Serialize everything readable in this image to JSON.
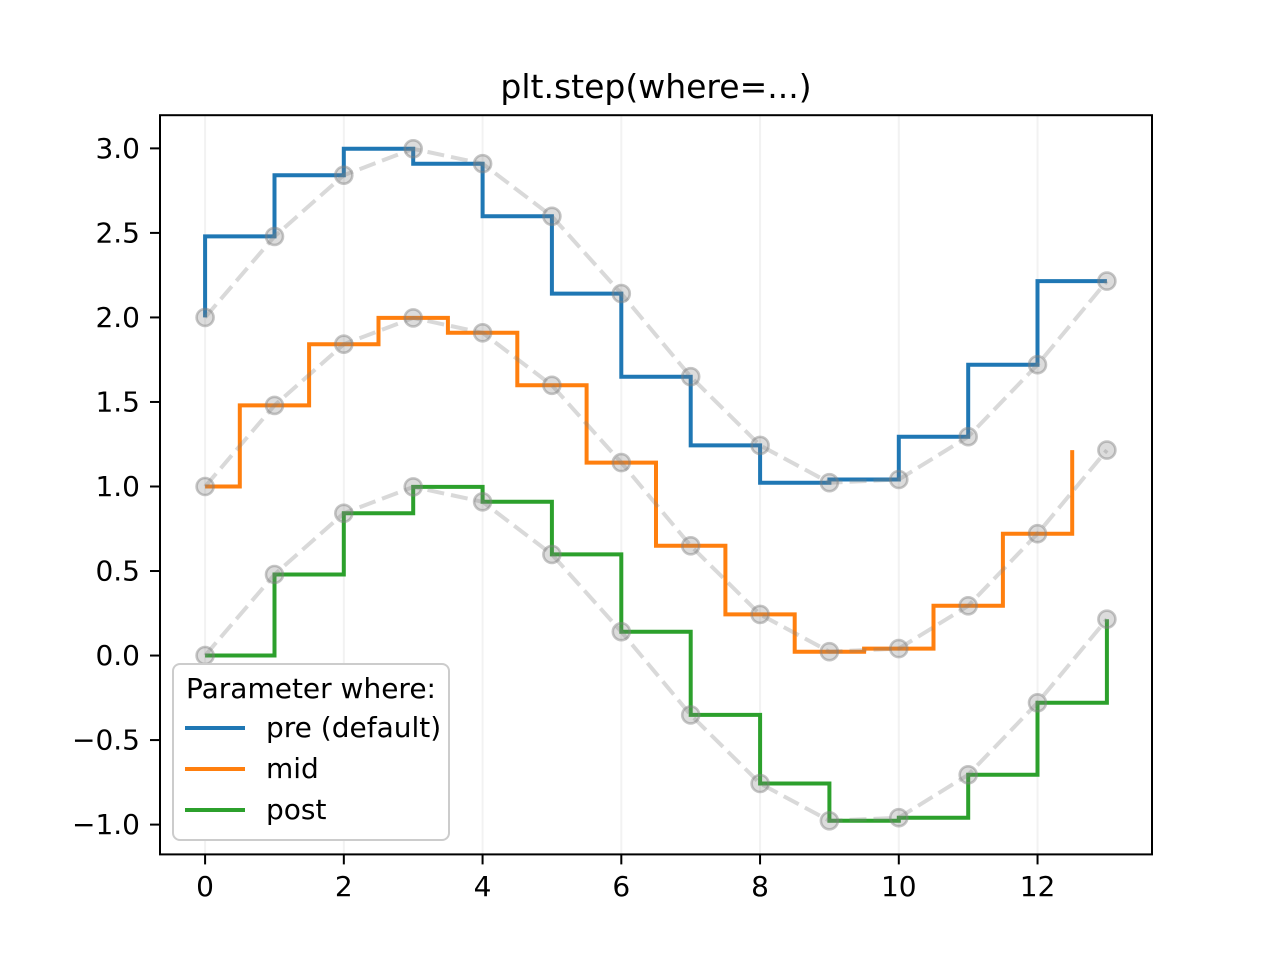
{
  "chart_data": {
    "type": "line",
    "variant": "step",
    "title": "plt.step(where=...)",
    "x": [
      0,
      1,
      2,
      3,
      4,
      5,
      6,
      7,
      8,
      9,
      10,
      11,
      12,
      13
    ],
    "base_y": [
      0.0,
      0.4794,
      0.8415,
      0.9975,
      0.9093,
      0.5985,
      0.1411,
      -0.3508,
      -0.7568,
      -0.9775,
      -0.9589,
      -0.7055,
      -0.2794,
      0.2151
    ],
    "series": [
      {
        "name": "pre (default)",
        "where": "pre",
        "offset": 2,
        "color": "#1f77b4",
        "values": [
          2.0,
          2.4794,
          2.8415,
          2.9975,
          2.9093,
          2.5985,
          2.1411,
          1.6492,
          1.2432,
          1.0225,
          1.0411,
          1.2945,
          1.7206,
          2.2151
        ]
      },
      {
        "name": "mid",
        "where": "mid",
        "offset": 1,
        "color": "#ff7f0e",
        "values": [
          1.0,
          1.4794,
          1.8415,
          1.9975,
          1.9093,
          1.5985,
          1.1411,
          0.6492,
          0.2432,
          0.0225,
          0.0411,
          0.2945,
          0.7206,
          1.2151
        ]
      },
      {
        "name": "post",
        "where": "post",
        "offset": 0,
        "color": "#2ca02c",
        "values": [
          0.0,
          0.4794,
          0.8415,
          0.9975,
          0.9093,
          0.5985,
          0.1411,
          -0.3508,
          -0.7568,
          -0.9775,
          -0.9589,
          -0.7055,
          -0.2794,
          0.2151
        ]
      }
    ],
    "reference": {
      "style": "dashed",
      "marker": "circle",
      "line_color": "rgba(128,128,128,0.3)",
      "marker_fill": "rgba(128,128,128,0.28)",
      "marker_edge": "rgba(128,128,128,0.45)"
    },
    "legend": {
      "title": "Parameter where:",
      "position": "lower-left",
      "entries": [
        "pre (default)",
        "mid",
        "post"
      ]
    },
    "axes": {
      "xlim": [
        -0.65,
        13.65
      ],
      "ylim": [
        -1.17625,
        3.19625
      ],
      "xticks": [
        0,
        2,
        4,
        6,
        8,
        10,
        12
      ],
      "yticks": [
        -1.0,
        -0.5,
        0.0,
        0.5,
        1.0,
        1.5,
        2.0,
        2.5,
        3.0
      ],
      "xtick_labels": [
        "0",
        "2",
        "4",
        "6",
        "8",
        "10",
        "12"
      ],
      "ytick_labels": [
        "−1.0",
        "−0.5",
        "0.0",
        "0.5",
        "1.0",
        "1.5",
        "2.0",
        "2.5",
        "3.0"
      ],
      "grid": {
        "axis": "x",
        "color": "#f2f2f2"
      },
      "spine_color": "#000000"
    }
  }
}
